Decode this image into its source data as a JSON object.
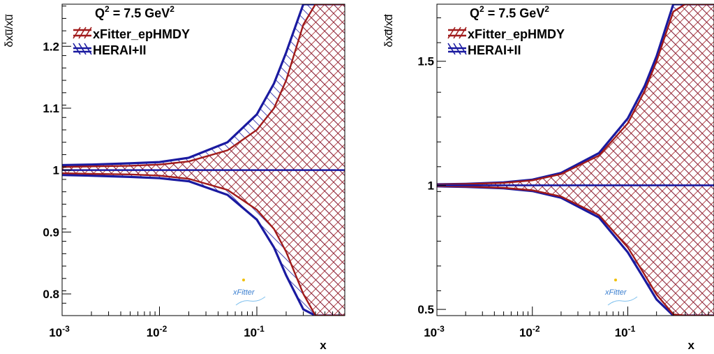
{
  "chart_data": [
    {
      "type": "area",
      "ylabel": "δxu̅/xu̅",
      "xlabel": "",
      "xscale": "log",
      "xlim": [
        0.001,
        0.8
      ],
      "ylim": [
        0.765,
        1.268
      ],
      "yticks": [
        0.8,
        0.9,
        1.0,
        1.1,
        1.2
      ],
      "ytick_labels": [
        "0.8",
        "0.9",
        "1",
        "1.1",
        "1.2"
      ],
      "xtick_exponents": [
        "-3",
        "-2",
        "-1"
      ],
      "legend_placement": "top-left",
      "annotation": "Q",
      "annotation_rest": " = 7.5 GeV",
      "annotation_sup": "2",
      "x": [
        0.001,
        0.002,
        0.005,
        0.01,
        0.02,
        0.05,
        0.1,
        0.15,
        0.2,
        0.3,
        0.4,
        0.5,
        0.8
      ],
      "series": [
        {
          "name": "xFitter_epHMDY",
          "color": "#a01a1a",
          "upper": [
            1.005,
            1.006,
            1.007,
            1.009,
            1.014,
            1.032,
            1.065,
            1.1,
            1.145,
            1.235,
            1.268,
            1.268,
            1.268
          ],
          "lower": [
            0.995,
            0.994,
            0.993,
            0.991,
            0.986,
            0.968,
            0.936,
            0.905,
            0.868,
            0.8,
            0.765,
            0.765,
            0.765
          ]
        },
        {
          "name": "HERAI+II",
          "color": "#1a1aa0",
          "upper": [
            1.008,
            1.009,
            1.011,
            1.013,
            1.02,
            1.045,
            1.09,
            1.14,
            1.19,
            1.268,
            1.268,
            1.268,
            1.268
          ],
          "lower": [
            0.992,
            0.991,
            0.989,
            0.987,
            0.982,
            0.96,
            0.92,
            0.875,
            0.83,
            0.775,
            0.765,
            0.765,
            0.765
          ],
          "central": 1.0
        }
      ]
    },
    {
      "type": "area",
      "ylabel": "δxd̅/xd̅",
      "xlabel": "x",
      "xscale": "log",
      "xlim": [
        0.001,
        0.8
      ],
      "ylim": [
        0.475,
        1.73
      ],
      "yticks": [
        0.5,
        1.0,
        1.5
      ],
      "ytick_labels": [
        "0.5",
        "1",
        "1.5"
      ],
      "xtick_exponents": [
        "-3",
        "-2",
        "-1"
      ],
      "legend_placement": "top-left",
      "annotation": "Q",
      "annotation_rest": " = 7.5 GeV",
      "annotation_sup": "2",
      "x": [
        0.001,
        0.002,
        0.005,
        0.01,
        0.02,
        0.05,
        0.1,
        0.15,
        0.2,
        0.3,
        0.4,
        0.5,
        0.8
      ],
      "series": [
        {
          "name": "xFitter_epHMDY",
          "color": "#a01a1a",
          "upper": [
            1.003,
            1.005,
            1.01,
            1.02,
            1.045,
            1.12,
            1.25,
            1.38,
            1.5,
            1.7,
            1.73,
            1.73,
            1.73
          ],
          "lower": [
            0.997,
            0.995,
            0.99,
            0.98,
            0.955,
            0.88,
            0.75,
            0.64,
            0.56,
            0.48,
            0.475,
            0.475,
            0.475
          ]
        },
        {
          "name": "HERAI+II",
          "color": "#1a1aa0",
          "upper": [
            1.004,
            1.006,
            1.012,
            1.023,
            1.05,
            1.13,
            1.27,
            1.4,
            1.52,
            1.73,
            1.73,
            1.73,
            1.73
          ],
          "lower": [
            0.996,
            0.994,
            0.988,
            0.977,
            0.95,
            0.87,
            0.73,
            0.62,
            0.54,
            0.475,
            0.475,
            0.475,
            0.475
          ],
          "central": 1.0
        }
      ]
    }
  ],
  "logo_text": "xFitter"
}
